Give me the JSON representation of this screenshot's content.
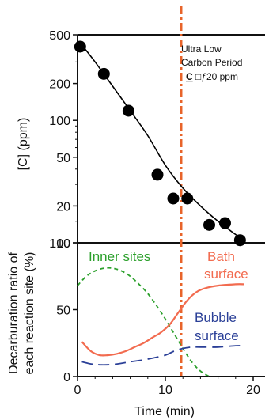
{
  "chart_data": [
    {
      "type": "scatter",
      "ylabel": "[C] (ppm)",
      "y_scale": "log",
      "ylim": [
        10,
        500
      ],
      "xlim": [
        0,
        20
      ],
      "y_ticks": [
        "500",
        "200",
        "100",
        "50",
        "20",
        "10"
      ],
      "y_tick_values": [
        500,
        200,
        100,
        50,
        20,
        10
      ],
      "series": [
        {
          "marker": "filled-circle",
          "x": [
            0.3,
            3,
            5.8,
            9.1,
            10.9,
            12.5,
            15,
            16.8,
            18.5
          ],
          "y": [
            400,
            240,
            120,
            36,
            23,
            23,
            14,
            14.5,
            10.5
          ]
        }
      ],
      "fit_curve": {
        "x": [
          0.3,
          2,
          4,
          6,
          8,
          10,
          12,
          14,
          16,
          18.5
        ],
        "y": [
          430,
          300,
          190,
          120,
          75,
          43,
          28,
          20,
          15,
          11
        ]
      },
      "annotation": {
        "line1": "Ultra Low",
        "line2": "Carbon Period",
        "line3_prefix": "C",
        "line3_rest": " □ƒ",
        "line3_value": "20 ppm"
      },
      "marker_color": "#000000"
    },
    {
      "type": "line",
      "ylabel_line1": "Decarburation ratio of",
      "ylabel_line2": "each reaction site (%)",
      "xlabel": "Time (min)",
      "xlim": [
        0,
        20
      ],
      "ylim": [
        0,
        100
      ],
      "x_ticks": [
        "0",
        "10",
        "20"
      ],
      "x_tick_values": [
        0,
        10,
        20
      ],
      "y_ticks": [
        "100",
        "50",
        "0"
      ],
      "y_tick_values": [
        100,
        50,
        0
      ],
      "series": [
        {
          "name": "Inner sites",
          "color": "#2ca02c",
          "style": "dashed",
          "x": [
            0,
            1,
            2,
            3,
            4,
            5,
            6,
            7,
            8,
            9,
            10,
            11,
            12,
            13,
            14,
            15
          ],
          "y": [
            68,
            75,
            79,
            81,
            81,
            79,
            75,
            69,
            62,
            53,
            43,
            32,
            21,
            11,
            4,
            0
          ]
        },
        {
          "name_line1": "Bath",
          "name_line2": "surface",
          "color": "#f26b4f",
          "style": "solid",
          "x": [
            0.5,
            1.5,
            2.5,
            3.5,
            4.5,
            5.5,
            6.5,
            7.5,
            8.5,
            9.5,
            10.5,
            11.5,
            12.5,
            13.5,
            14.5,
            16,
            18,
            19
          ],
          "y": [
            26,
            19,
            16,
            16,
            17,
            19,
            22,
            25,
            29,
            33,
            39,
            48,
            57,
            63,
            66,
            68,
            69,
            69
          ]
        },
        {
          "name_line1": "Bubble",
          "name_line2": "surface",
          "color": "#2a3f97",
          "style": "dashed",
          "x": [
            0.5,
            2,
            4,
            6,
            8,
            10,
            11,
            12,
            13,
            14,
            16,
            18,
            19
          ],
          "y": [
            11,
            9,
            9,
            11,
            13,
            16,
            19,
            21,
            22,
            22,
            22,
            23,
            23
          ]
        }
      ]
    }
  ],
  "vertical_marker": {
    "x": 11.8,
    "color": "#e8642a",
    "style": "dash-dot"
  },
  "colors": {
    "inner_label": "#2ca02c",
    "bath_label": "#f26b4f",
    "bubble_label": "#2a3f97",
    "axis": "#111111"
  }
}
